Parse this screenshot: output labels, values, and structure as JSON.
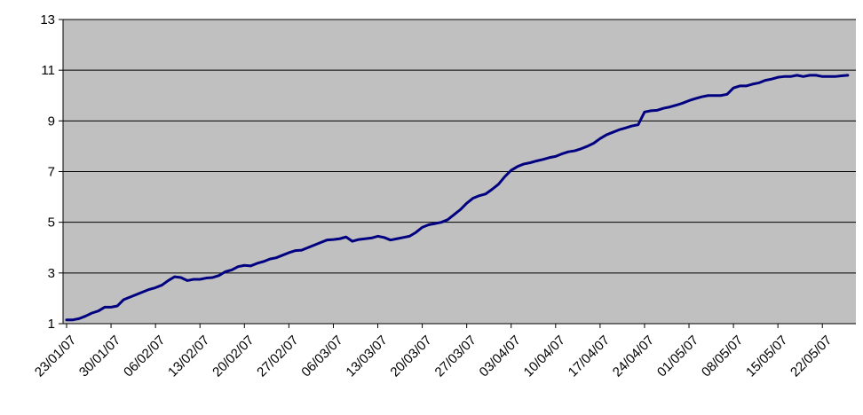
{
  "chart_data": {
    "type": "line",
    "title": "",
    "xlabel": "",
    "ylabel": "",
    "ylim": [
      1,
      13
    ],
    "y_ticks": [
      1,
      3,
      5,
      7,
      9,
      11,
      13
    ],
    "x_ticks": [
      "23/01/07",
      "30/01/07",
      "06/02/07",
      "13/02/07",
      "20/02/07",
      "27/02/07",
      "06/03/07",
      "13/03/07",
      "20/03/07",
      "27/03/07",
      "03/04/07",
      "10/04/07",
      "17/04/07",
      "24/04/07",
      "01/05/07",
      "08/05/07",
      "15/05/07",
      "22/05/07"
    ],
    "grid": "horizontal",
    "legend": "none",
    "colors": {
      "plot_background": "#c0c0c0",
      "line": "#000080",
      "gridline": "#000000"
    },
    "series": [
      {
        "values": [
          [
            "23/01/07",
            1.15
          ],
          [
            "24/01/07",
            1.15
          ],
          [
            "25/01/07",
            1.2
          ],
          [
            "26/01/07",
            1.3
          ],
          [
            "27/01/07",
            1.42
          ],
          [
            "28/01/07",
            1.5
          ],
          [
            "29/01/07",
            1.65
          ],
          [
            "30/01/07",
            1.65
          ],
          [
            "31/01/07",
            1.7
          ],
          [
            "01/02/07",
            1.95
          ],
          [
            "02/02/07",
            2.05
          ],
          [
            "03/02/07",
            2.15
          ],
          [
            "04/02/07",
            2.25
          ],
          [
            "05/02/07",
            2.35
          ],
          [
            "06/02/07",
            2.42
          ],
          [
            "07/02/07",
            2.52
          ],
          [
            "08/02/07",
            2.7
          ],
          [
            "09/02/07",
            2.85
          ],
          [
            "10/02/07",
            2.82
          ],
          [
            "11/02/07",
            2.7
          ],
          [
            "12/02/07",
            2.75
          ],
          [
            "13/02/07",
            2.75
          ],
          [
            "14/02/07",
            2.8
          ],
          [
            "15/02/07",
            2.82
          ],
          [
            "16/02/07",
            2.9
          ],
          [
            "17/02/07",
            3.05
          ],
          [
            "18/02/07",
            3.12
          ],
          [
            "19/02/07",
            3.25
          ],
          [
            "20/02/07",
            3.3
          ],
          [
            "21/02/07",
            3.28
          ],
          [
            "22/02/07",
            3.38
          ],
          [
            "23/02/07",
            3.45
          ],
          [
            "24/02/07",
            3.55
          ],
          [
            "25/02/07",
            3.6
          ],
          [
            "26/02/07",
            3.7
          ],
          [
            "27/02/07",
            3.8
          ],
          [
            "28/02/07",
            3.88
          ],
          [
            "01/03/07",
            3.9
          ],
          [
            "02/03/07",
            4.0
          ],
          [
            "03/03/07",
            4.1
          ],
          [
            "04/03/07",
            4.2
          ],
          [
            "05/03/07",
            4.3
          ],
          [
            "06/03/07",
            4.32
          ],
          [
            "07/03/07",
            4.35
          ],
          [
            "08/03/07",
            4.42
          ],
          [
            "09/03/07",
            4.25
          ],
          [
            "10/03/07",
            4.32
          ],
          [
            "11/03/07",
            4.35
          ],
          [
            "12/03/07",
            4.38
          ],
          [
            "13/03/07",
            4.45
          ],
          [
            "14/03/07",
            4.4
          ],
          [
            "15/03/07",
            4.3
          ],
          [
            "16/03/07",
            4.35
          ],
          [
            "17/03/07",
            4.4
          ],
          [
            "18/03/07",
            4.45
          ],
          [
            "19/03/07",
            4.6
          ],
          [
            "20/03/07",
            4.8
          ],
          [
            "21/03/07",
            4.9
          ],
          [
            "22/03/07",
            4.95
          ],
          [
            "23/03/07",
            5.0
          ],
          [
            "24/03/07",
            5.1
          ],
          [
            "25/03/07",
            5.3
          ],
          [
            "26/03/07",
            5.5
          ],
          [
            "27/03/07",
            5.75
          ],
          [
            "28/03/07",
            5.95
          ],
          [
            "29/03/07",
            6.05
          ],
          [
            "30/03/07",
            6.12
          ],
          [
            "31/03/07",
            6.3
          ],
          [
            "01/04/07",
            6.5
          ],
          [
            "02/04/07",
            6.8
          ],
          [
            "03/04/07",
            7.05
          ],
          [
            "04/04/07",
            7.2
          ],
          [
            "05/04/07",
            7.3
          ],
          [
            "06/04/07",
            7.35
          ],
          [
            "07/04/07",
            7.42
          ],
          [
            "08/04/07",
            7.48
          ],
          [
            "09/04/07",
            7.55
          ],
          [
            "10/04/07",
            7.6
          ],
          [
            "11/04/07",
            7.7
          ],
          [
            "12/04/07",
            7.78
          ],
          [
            "13/04/07",
            7.82
          ],
          [
            "14/04/07",
            7.9
          ],
          [
            "15/04/07",
            8.0
          ],
          [
            "16/04/07",
            8.12
          ],
          [
            "17/04/07",
            8.3
          ],
          [
            "18/04/07",
            8.45
          ],
          [
            "19/04/07",
            8.55
          ],
          [
            "20/04/07",
            8.65
          ],
          [
            "21/04/07",
            8.72
          ],
          [
            "22/04/07",
            8.8
          ],
          [
            "23/04/07",
            8.85
          ],
          [
            "24/04/07",
            9.35
          ],
          [
            "25/04/07",
            9.4
          ],
          [
            "26/04/07",
            9.42
          ],
          [
            "27/04/07",
            9.5
          ],
          [
            "28/04/07",
            9.55
          ],
          [
            "29/04/07",
            9.62
          ],
          [
            "30/04/07",
            9.7
          ],
          [
            "01/05/07",
            9.8
          ],
          [
            "02/05/07",
            9.88
          ],
          [
            "03/05/07",
            9.95
          ],
          [
            "04/05/07",
            10.0
          ],
          [
            "05/05/07",
            10.0
          ],
          [
            "06/05/07",
            10.0
          ],
          [
            "07/05/07",
            10.05
          ],
          [
            "08/05/07",
            10.3
          ],
          [
            "09/05/07",
            10.38
          ],
          [
            "10/05/07",
            10.38
          ],
          [
            "11/05/07",
            10.45
          ],
          [
            "12/05/07",
            10.5
          ],
          [
            "13/05/07",
            10.6
          ],
          [
            "14/05/07",
            10.65
          ],
          [
            "15/05/07",
            10.72
          ],
          [
            "16/05/07",
            10.75
          ],
          [
            "17/05/07",
            10.75
          ],
          [
            "18/05/07",
            10.8
          ],
          [
            "19/05/07",
            10.75
          ],
          [
            "20/05/07",
            10.8
          ],
          [
            "21/05/07",
            10.8
          ],
          [
            "22/05/07",
            10.75
          ],
          [
            "23/05/07",
            10.75
          ],
          [
            "24/05/07",
            10.75
          ],
          [
            "25/05/07",
            10.78
          ],
          [
            "26/05/07",
            10.8
          ]
        ]
      }
    ]
  }
}
